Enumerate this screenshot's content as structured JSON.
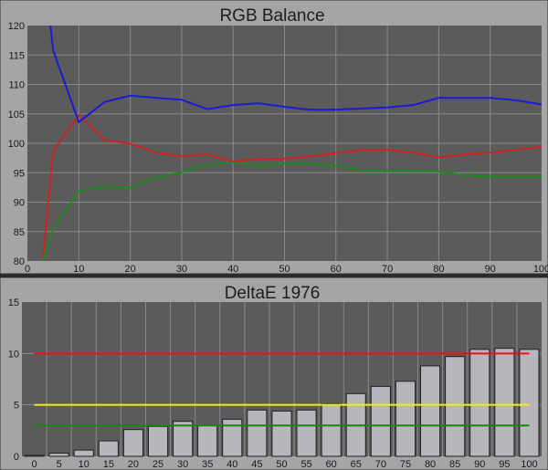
{
  "chart_data": [
    {
      "type": "line",
      "title": "RGB Balance",
      "xlabel": "",
      "ylabel": "",
      "xlim": [
        0,
        100
      ],
      "ylim": [
        80,
        120
      ],
      "xticks": [
        "0",
        "10",
        "20",
        "30",
        "40",
        "50",
        "60",
        "70",
        "80",
        "90",
        "100"
      ],
      "yticks": [
        "80",
        "85",
        "90",
        "95",
        "100",
        "105",
        "110",
        "115",
        "120"
      ],
      "grid": true,
      "background": "#5b5b5b",
      "series": [
        {
          "color": "#cc2222",
          "x": [
            3,
            5,
            10,
            15,
            20,
            25,
            30,
            35,
            40,
            45,
            50,
            55,
            60,
            65,
            70,
            75,
            80,
            85,
            90,
            95,
            100
          ],
          "y": [
            80,
            98.7,
            104.8,
            100.6,
            99.9,
            98.4,
            97.8,
            98.1,
            96.9,
            97.3,
            97.4,
            97.8,
            98.3,
            98.9,
            98.9,
            98.4,
            97.6,
            98.1,
            98.4,
            98.9,
            99.4
          ]
        },
        {
          "color": "#228822",
          "x": [
            3,
            5,
            10,
            15,
            20,
            25,
            30,
            35,
            40,
            45,
            50,
            55,
            60,
            65,
            70,
            75,
            80,
            85,
            90,
            95,
            100
          ],
          "y": [
            80,
            85.6,
            91.9,
            92.7,
            92.4,
            94.2,
            95.1,
            96.3,
            96.8,
            96.2,
            96.6,
            96.6,
            96.2,
            95.4,
            95.3,
            95.4,
            95.2,
            94.6,
            94.3,
            94.3,
            94.3
          ]
        },
        {
          "color": "#1a1ad8",
          "x": [
            4.5,
            5,
            10,
            15,
            20,
            25,
            30,
            35,
            40,
            45,
            50,
            55,
            60,
            65,
            70,
            75,
            80,
            85,
            90,
            95,
            100
          ],
          "y": [
            120,
            115.8,
            103.6,
            107,
            108.1,
            107.7,
            107.4,
            105.8,
            106.5,
            106.8,
            106.2,
            105.7,
            105.7,
            105.9,
            106.1,
            106.5,
            107.7,
            107.7,
            107.7,
            107.3,
            106.6
          ]
        }
      ]
    },
    {
      "type": "bar",
      "title": "DeltaE 1976",
      "xlabel": "",
      "ylabel": "",
      "categories": [
        "0",
        "5",
        "10",
        "15",
        "20",
        "25",
        "30",
        "35",
        "40",
        "45",
        "50",
        "55",
        "60",
        "65",
        "70",
        "75",
        "80",
        "85",
        "90",
        "95",
        "100"
      ],
      "values": [
        0.1,
        0.3,
        0.6,
        1.5,
        2.6,
        2.9,
        3.4,
        3.0,
        3.6,
        4.5,
        4.4,
        4.5,
        5.1,
        6.1,
        6.8,
        7.3,
        8.8,
        9.7,
        10.4,
        10.5,
        10.4
      ],
      "ylim": [
        0,
        15
      ],
      "yticks": [
        "0",
        "5",
        "10",
        "15"
      ],
      "grid": true,
      "background": "#5b5b5b",
      "bar_color": "#b9b5bd",
      "reference_lines": [
        {
          "value": 10,
          "color": "#ee1111"
        },
        {
          "value": 5,
          "color": "#eeee11"
        },
        {
          "value": 3,
          "color": "#118811"
        }
      ]
    }
  ]
}
